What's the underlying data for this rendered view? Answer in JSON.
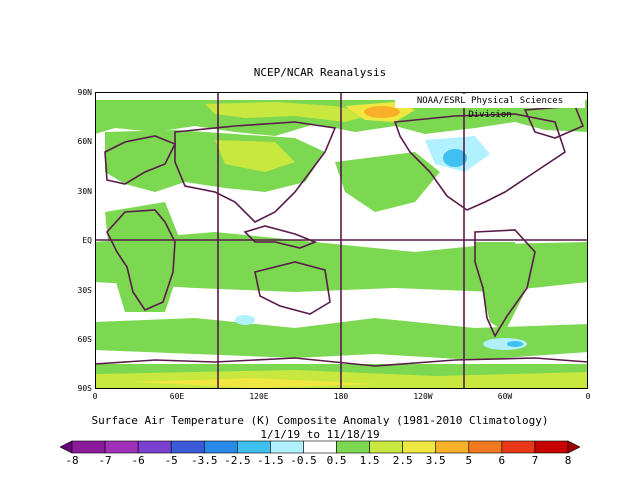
{
  "title": "NCEP/NCAR Reanalysis",
  "credit": "NOAA/ESRL Physical Sciences Division",
  "subtitle": "Surface Air Temperature (K) Composite Anomaly (1981-2010 Climatology)",
  "date_range": "1/1/19   to 11/18/19",
  "lat_labels": [
    "90N",
    "60N",
    "30N",
    "EQ",
    "30S",
    "60S",
    "90S"
  ],
  "lon_labels": [
    "0",
    "60E",
    "120E",
    "180",
    "120W",
    "60W",
    "0"
  ],
  "colorbar": {
    "labels": [
      "-8",
      "-7",
      "-6",
      "-5",
      "-3.5",
      "-2.5",
      "-1.5",
      "-0.5",
      "0.5",
      "1.5",
      "2.5",
      "3.5",
      "5",
      "6",
      "7",
      "8"
    ],
    "colors": [
      "#6a0080",
      "#8a1a9a",
      "#a030b8",
      "#7a40d0",
      "#3a5ad8",
      "#2a88e8",
      "#40c0f0",
      "#b0f0ff",
      "#ffffff",
      "#7cd850",
      "#c8e840",
      "#f0e840",
      "#f8b028",
      "#f07820",
      "#e83818",
      "#c80000",
      "#a00000"
    ]
  },
  "colors": {
    "warm_light": "#7cd850",
    "warm_mid": "#c8e840",
    "warm_high": "#f0e840",
    "warm_orange": "#f8b028",
    "cold_light": "#b0f0ff",
    "cold_mid": "#40c0f0",
    "coast": "#5a1a4a"
  }
}
